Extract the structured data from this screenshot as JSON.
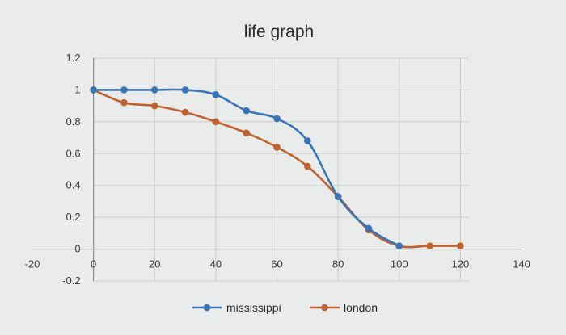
{
  "chart_data": {
    "type": "line",
    "title": "life graph",
    "xlabel": "",
    "ylabel": "",
    "xlim": [
      -20,
      140
    ],
    "ylim": [
      -0.2,
      1.2
    ],
    "xticks": [
      -20,
      0,
      20,
      40,
      60,
      80,
      100,
      120,
      140
    ],
    "xtick_labels": [
      "-20",
      "0",
      "20",
      "40",
      "60",
      "80",
      "100",
      "120",
      "140"
    ],
    "yticks": [
      -0.2,
      0,
      0.2,
      0.4,
      0.6,
      0.8,
      1,
      1.2
    ],
    "ytick_labels": [
      "-0.2",
      "0",
      "0.2",
      "0.4",
      "0.6",
      "0.8",
      "1",
      "1.2"
    ],
    "grid": true,
    "legend_position": "bottom",
    "series": [
      {
        "name": "mississippi",
        "color": "#3a74b8",
        "x": [
          0,
          10,
          20,
          30,
          40,
          50,
          60,
          70,
          80,
          90,
          100
        ],
        "y": [
          1.0,
          1.0,
          1.0,
          1.0,
          0.97,
          0.87,
          0.82,
          0.68,
          0.33,
          0.13,
          0.02
        ]
      },
      {
        "name": "london",
        "color": "#c0622f",
        "x": [
          0,
          10,
          20,
          30,
          40,
          50,
          60,
          70,
          80,
          90,
          100,
          110,
          120
        ],
        "y": [
          1.0,
          0.92,
          0.9,
          0.86,
          0.8,
          0.73,
          0.64,
          0.52,
          0.33,
          0.12,
          0.02,
          0.02,
          0.02
        ]
      }
    ]
  }
}
